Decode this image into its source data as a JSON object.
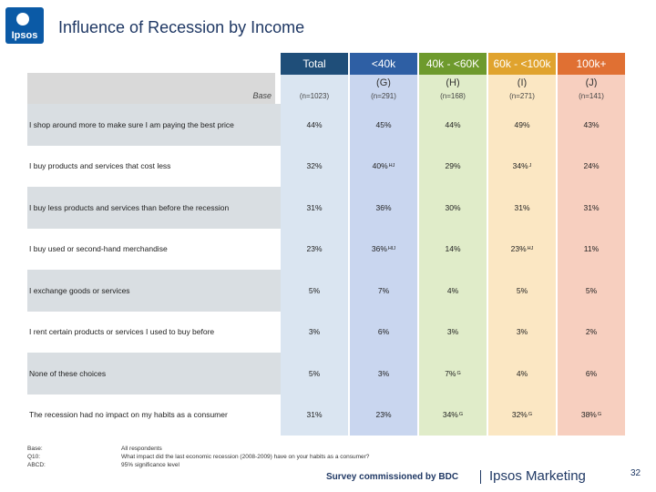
{
  "slide": {
    "title": "Influence of Recession by Income",
    "logo_text": "Ipsos",
    "page_number": "32"
  },
  "header": {
    "base_label": "Base",
    "columns": [
      {
        "name": "Total",
        "code": "",
        "base": "(n=1023)",
        "head_color": "#1f4e79",
        "body_color": "#dae5f1"
      },
      {
        "name": "<40k",
        "code": "(G)",
        "base": "(n=291)",
        "head_color": "#2e5fa4",
        "body_color": "#c9d6ef"
      },
      {
        "name": "40k - <60K",
        "code": "(H)",
        "base": "(n=168)",
        "head_color": "#6e9a2d",
        "body_color": "#e0ecc9"
      },
      {
        "name": "60k - <100k",
        "code": "(I)",
        "base": "(n=271)",
        "head_color": "#e0a32e",
        "body_color": "#fbe7c3"
      },
      {
        "name": "100k+",
        "code": "(J)",
        "base": "(n=141)",
        "head_color": "#e07033",
        "body_color": "#f7cfbf"
      }
    ]
  },
  "chart_data": {
    "type": "table",
    "title": "Influence of Recession by Income",
    "columns": [
      "Total",
      "<40k (G)",
      "40k - <60K (H)",
      "60k - <100k (I)",
      "100k+ (J)"
    ],
    "bases": [
      "(n=1023)",
      "(n=291)",
      "(n=168)",
      "(n=271)",
      "(n=141)"
    ],
    "rows": [
      {
        "label": "I shop around more to make sure I am paying the best price",
        "cells": [
          {
            "v": "44%",
            "s": ""
          },
          {
            "v": "45%",
            "s": ""
          },
          {
            "v": "44%",
            "s": ""
          },
          {
            "v": "49%",
            "s": ""
          },
          {
            "v": "43%",
            "s": ""
          }
        ]
      },
      {
        "label": "I buy products and services that cost less",
        "cells": [
          {
            "v": "32%",
            "s": ""
          },
          {
            "v": "40%",
            "s": "HJ"
          },
          {
            "v": "29%",
            "s": ""
          },
          {
            "v": "34%",
            "s": "J"
          },
          {
            "v": "24%",
            "s": ""
          }
        ]
      },
      {
        "label": "I buy less products and services than before the recession",
        "cells": [
          {
            "v": "31%",
            "s": ""
          },
          {
            "v": "36%",
            "s": ""
          },
          {
            "v": "30%",
            "s": ""
          },
          {
            "v": "31%",
            "s": ""
          },
          {
            "v": "31%",
            "s": ""
          }
        ]
      },
      {
        "label": "I buy used or second-hand merchandise",
        "cells": [
          {
            "v": "23%",
            "s": ""
          },
          {
            "v": "36%",
            "s": "HIJ"
          },
          {
            "v": "14%",
            "s": ""
          },
          {
            "v": "23%",
            "s": "HJ"
          },
          {
            "v": "11%",
            "s": ""
          }
        ]
      },
      {
        "label": "I exchange goods or services",
        "cells": [
          {
            "v": "5%",
            "s": ""
          },
          {
            "v": "7%",
            "s": ""
          },
          {
            "v": "4%",
            "s": ""
          },
          {
            "v": "5%",
            "s": ""
          },
          {
            "v": "5%",
            "s": ""
          }
        ]
      },
      {
        "label": "I rent certain products or services I used to buy before",
        "cells": [
          {
            "v": "3%",
            "s": ""
          },
          {
            "v": "6%",
            "s": ""
          },
          {
            "v": "3%",
            "s": ""
          },
          {
            "v": "3%",
            "s": ""
          },
          {
            "v": "2%",
            "s": ""
          }
        ]
      },
      {
        "label": "None of these choices",
        "cells": [
          {
            "v": "5%",
            "s": ""
          },
          {
            "v": "3%",
            "s": ""
          },
          {
            "v": "7%",
            "s": "G"
          },
          {
            "v": "4%",
            "s": ""
          },
          {
            "v": "6%",
            "s": ""
          }
        ]
      },
      {
        "label": "The recession had no impact on my habits as a consumer",
        "cells": [
          {
            "v": "31%",
            "s": ""
          },
          {
            "v": "23%",
            "s": ""
          },
          {
            "v": "34%",
            "s": "G"
          },
          {
            "v": "32%",
            "s": "G"
          },
          {
            "v": "38%",
            "s": "G"
          }
        ]
      }
    ]
  },
  "footnotes": {
    "labels": [
      "Base:",
      "Q10:",
      "ABCD:"
    ],
    "values": [
      "All respondents",
      "What impact did the last economic recession (2008-2009) have on your habits as a consumer?",
      "95% significance level"
    ]
  },
  "footer": {
    "survey_text": "Survey commissioned by BDC",
    "brand": "Ipsos Marketing"
  },
  "colors": {
    "label_band_dark": "#d9dee2",
    "label_band_light": "#ffffff",
    "title": "#1f3864",
    "logo": "#0b5aa6"
  }
}
